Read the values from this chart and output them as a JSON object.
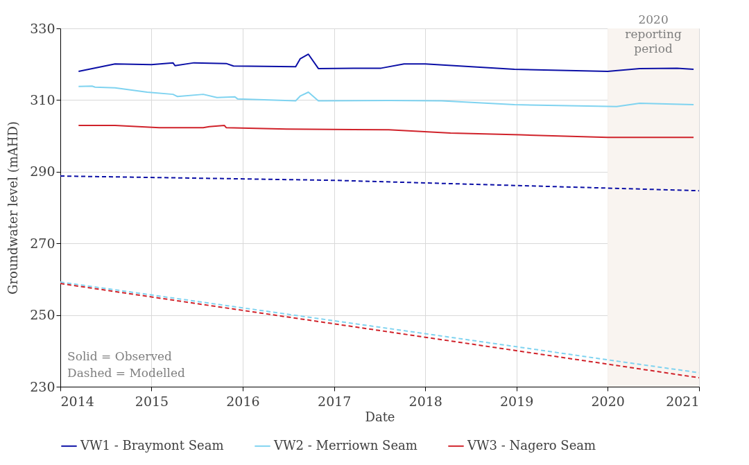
{
  "chart_data": {
    "type": "line",
    "xlabel": "Date",
    "ylabel": "Groundwater level (mAHD)",
    "xlim": [
      "2014",
      "2021"
    ],
    "xticks": [
      "2014",
      "2015",
      "2016",
      "2017",
      "2018",
      "2019",
      "2020",
      "2021"
    ],
    "ylim": [
      230,
      330
    ],
    "yticks": [
      230,
      250,
      270,
      290,
      310,
      330
    ],
    "grid": true,
    "legend": "bottom",
    "annotations": [
      "Solid = Observed",
      "Dashed = Modelled"
    ],
    "bands": [
      {
        "axis": "x",
        "from": "2020",
        "to": "2021",
        "label": "2020 reporting period",
        "color": "#f9f4f0"
      }
    ],
    "series": [
      {
        "name": "VW1 - Braymont Seam",
        "color": "#0b0fa6",
        "line_style": "solid",
        "x": [
          "2014-03-15",
          "2014-08-08",
          "2015-01-01",
          "2015-03-28",
          "2015-04-05",
          "2015-06-20",
          "2015-10-27",
          "2015-11-25",
          "2016-07-31",
          "2016-08-18",
          "2016-09-20",
          "2016-10-30",
          "2017-07-08",
          "2017-10-08",
          "2018-01-01",
          "2018-12-24",
          "2020-01-01",
          "2020-05-08",
          "2020-10-05",
          "2020-12-10"
        ],
        "values": [
          318.0,
          320.1,
          319.9,
          320.4,
          319.6,
          320.4,
          320.2,
          319.5,
          319.3,
          321.5,
          322.8,
          318.8,
          318.9,
          320.1,
          320.1,
          318.6,
          318.0,
          318.8,
          318.9,
          318.6
        ]
      },
      {
        "name": "VW2 - Merriown Seam",
        "color": "#7fd3f0",
        "line_style": "solid",
        "x": [
          "2014-03-15",
          "2014-05-08",
          "2014-05-20",
          "2014-08-08",
          "2014-12-15",
          "2015-03-28",
          "2015-04-15",
          "2015-07-27",
          "2015-09-20",
          "2015-12-01",
          "2015-12-12",
          "2016-07-31",
          "2016-08-18",
          "2016-09-20",
          "2016-10-30",
          "2017-08-08",
          "2018-03-08",
          "2018-12-24",
          "2020-02-06",
          "2020-05-08",
          "2020-12-10"
        ],
        "values": [
          313.8,
          313.9,
          313.6,
          313.4,
          312.2,
          311.6,
          311.0,
          311.6,
          310.7,
          310.9,
          310.3,
          309.8,
          311.1,
          312.2,
          309.8,
          309.9,
          309.8,
          308.7,
          308.2,
          309.1,
          308.7
        ]
      },
      {
        "name": "VW3 - Nagero Seam",
        "color": "#d0222a",
        "line_style": "solid",
        "x": [
          "2014-03-15",
          "2014-08-08",
          "2015-02-01",
          "2015-07-27",
          "2015-08-20",
          "2015-10-20",
          "2015-10-27",
          "2016-06-25",
          "2017-08-08",
          "2018-04-12",
          "2019-01-15",
          "2020-01-01",
          "2020-12-10"
        ],
        "values": [
          302.9,
          302.9,
          302.3,
          302.3,
          302.6,
          302.9,
          302.3,
          301.9,
          301.7,
          300.8,
          300.3,
          299.6,
          299.6
        ]
      },
      {
        "color": "#0b0fa6",
        "line_style": "dashed",
        "x": [
          "2014-01-01",
          "2017-01-01",
          "2021-01-01"
        ],
        "values": [
          288.8,
          287.6,
          284.7
        ]
      },
      {
        "color": "#7fd3f0",
        "line_style": "dashed",
        "x": [
          "2014-01-01",
          "2016-01-01",
          "2018-01-01",
          "2020-01-01",
          "2021-01-01"
        ],
        "values": [
          259.2,
          252.0,
          244.8,
          237.5,
          233.9
        ]
      },
      {
        "color": "#d0222a",
        "line_style": "dashed",
        "x": [
          "2014-01-01",
          "2016-01-01",
          "2018-01-01",
          "2020-01-01",
          "2021-01-01"
        ],
        "values": [
          258.8,
          251.3,
          243.8,
          236.3,
          232.5
        ]
      }
    ]
  }
}
